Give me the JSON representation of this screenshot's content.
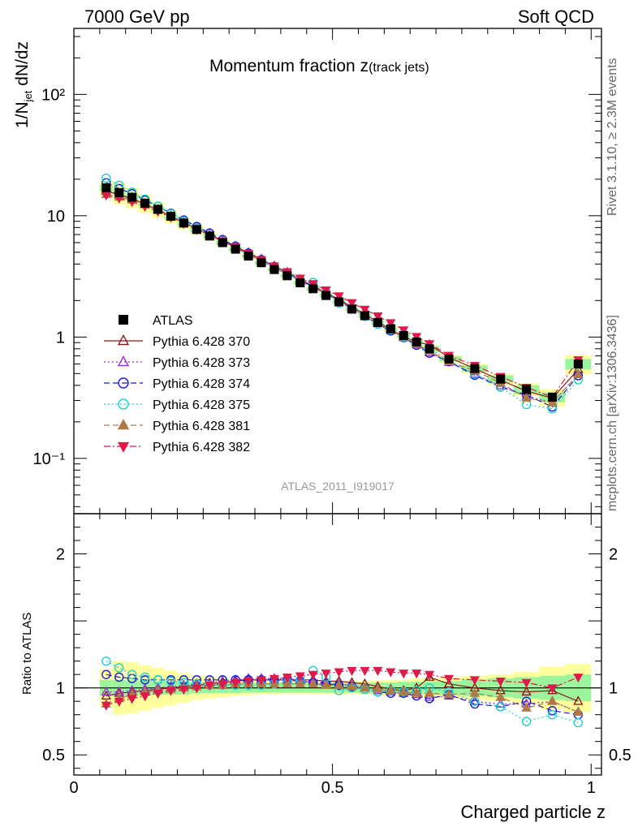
{
  "header": {
    "left": "7000 GeV pp",
    "right": "Soft QCD"
  },
  "side_labels": {
    "rivet": "Rivet 3.1.10, ≥ 2.3M events",
    "mcplots": "mcplots.cern.ch [arXiv:1306.3436]"
  },
  "chart_data": {
    "type": "scatter",
    "title_main": "Momentum fraction ",
    "title_var": "z",
    "title_sub": "(track jets)",
    "analysis_id": "ATLAS_2011_I919017",
    "ylabel_main": "1/N",
    "ylabel_sub": "jet",
    "ylabel_tail": " dN/dz",
    "ylabel_ratio": "Ratio to ATLAS",
    "xlabel": "Charged particle z",
    "xlim": [
      0,
      1.02
    ],
    "ylim_main": [
      0.035,
      350
    ],
    "ylog": true,
    "ylim_ratio": [
      0.35,
      2.3
    ],
    "x_ticks": [
      "0",
      "0.5",
      "1"
    ],
    "y_ticks_main": [
      "10⁻¹",
      "1",
      "10",
      "10²"
    ],
    "y_ticks_ratio": [
      "0.5",
      "1",
      "2"
    ],
    "legend_position": "lower-left",
    "x": [
      0.0625,
      0.0875,
      0.1125,
      0.1375,
      0.1625,
      0.1875,
      0.2125,
      0.2375,
      0.2625,
      0.2875,
      0.3125,
      0.3375,
      0.3625,
      0.3875,
      0.4125,
      0.4375,
      0.4625,
      0.4875,
      0.5125,
      0.5375,
      0.5625,
      0.5875,
      0.6125,
      0.6375,
      0.6625,
      0.6875,
      0.725,
      0.775,
      0.825,
      0.875,
      0.925,
      0.975
    ],
    "data": {
      "name": "ATLAS",
      "values": [
        17.0,
        15.5,
        14.2,
        12.7,
        11.3,
        9.9,
        8.7,
        7.7,
        6.8,
        6.0,
        5.3,
        4.65,
        4.1,
        3.6,
        3.2,
        2.8,
        2.5,
        2.2,
        1.95,
        1.7,
        1.5,
        1.32,
        1.17,
        1.03,
        0.91,
        0.8,
        0.66,
        0.55,
        0.45,
        0.37,
        0.32,
        0.6
      ],
      "band_inner": [
        0.06,
        0.06,
        0.06,
        0.05,
        0.05,
        0.05,
        0.05,
        0.04,
        0.04,
        0.04,
        0.04,
        0.035,
        0.035,
        0.035,
        0.035,
        0.035,
        0.035,
        0.035,
        0.035,
        0.035,
        0.04,
        0.04,
        0.04,
        0.045,
        0.045,
        0.05,
        0.05,
        0.06,
        0.07,
        0.08,
        0.09,
        0.1
      ],
      "band_outer": [
        0.14,
        0.2,
        0.19,
        0.17,
        0.15,
        0.13,
        0.11,
        0.09,
        0.08,
        0.07,
        0.06,
        0.055,
        0.05,
        0.05,
        0.045,
        0.045,
        0.045,
        0.045,
        0.045,
        0.05,
        0.05,
        0.055,
        0.06,
        0.06,
        0.07,
        0.07,
        0.08,
        0.09,
        0.1,
        0.12,
        0.16,
        0.18
      ]
    },
    "series": [
      {
        "name": "Pythia 6.428 370",
        "color": "#8b1a1a",
        "marker": "triangle-up-open",
        "dash": "",
        "ratio": [
          0.94,
          0.96,
          0.97,
          0.98,
          0.99,
          1.0,
          1.01,
          1.02,
          1.03,
          1.04,
          1.05,
          1.06,
          1.06,
          1.06,
          1.06,
          1.06,
          1.06,
          1.05,
          1.05,
          1.04,
          1.03,
          1.01,
          0.99,
          0.98,
          1.0,
          1.08,
          1.03,
          1.0,
          0.98,
          0.97,
          0.98,
          0.9
        ]
      },
      {
        "name": "Pythia 6.428 373",
        "color": "#9b30d0",
        "marker": "triangle-up-open",
        "dash": "2,3",
        "ratio": [
          0.97,
          0.97,
          0.98,
          0.99,
          1.0,
          1.01,
          1.02,
          1.03,
          1.04,
          1.05,
          1.06,
          1.07,
          1.07,
          1.07,
          1.07,
          1.06,
          1.05,
          1.04,
          1.03,
          1.02,
          1.0,
          0.98,
          0.97,
          0.96,
          0.95,
          0.93,
          0.94,
          0.9,
          0.88,
          0.88,
          0.9,
          0.82
        ]
      },
      {
        "name": "Pythia 6.428 374",
        "color": "#1a1ad8",
        "marker": "circle-open",
        "dash": "7,4",
        "ratio": [
          1.1,
          1.08,
          1.07,
          1.06,
          1.06,
          1.06,
          1.06,
          1.06,
          1.06,
          1.06,
          1.06,
          1.06,
          1.06,
          1.06,
          1.06,
          1.05,
          1.04,
          1.03,
          1.02,
          1.01,
          0.99,
          0.97,
          0.96,
          0.96,
          0.94,
          0.92,
          0.95,
          0.88,
          0.86,
          0.9,
          0.83,
          0.8
        ]
      },
      {
        "name": "Pythia 6.428 375",
        "color": "#20d0d0",
        "marker": "circle-open",
        "dash": "2,3",
        "ratio": [
          1.2,
          1.15,
          1.1,
          1.08,
          1.06,
          1.05,
          1.04,
          1.03,
          1.02,
          1.02,
          1.02,
          1.02,
          1.02,
          1.03,
          1.04,
          1.06,
          1.13,
          1.08,
          0.98,
          1.0,
          0.99,
          0.97,
          0.98,
          0.97,
          0.98,
          1.0,
          0.97,
          0.9,
          0.86,
          0.75,
          0.8,
          0.74
        ]
      },
      {
        "name": "Pythia 6.428 381",
        "color": "#b07a48",
        "marker": "triangle-up-filled",
        "dash": "7,4",
        "ratio": [
          0.88,
          0.92,
          0.95,
          0.97,
          0.98,
          0.99,
          1.0,
          1.01,
          1.02,
          1.02,
          1.03,
          1.03,
          1.03,
          1.03,
          1.03,
          1.03,
          1.03,
          1.02,
          1.02,
          1.01,
          1.0,
          0.99,
          0.98,
          0.97,
          0.96,
          0.96,
          0.95,
          0.96,
          0.93,
          0.85,
          0.9,
          0.82
        ]
      },
      {
        "name": "Pythia 6.428 382",
        "color": "#dd1a4a",
        "marker": "triangle-down-filled",
        "dash": "8,3,2,3",
        "ratio": [
          0.87,
          0.9,
          0.92,
          0.94,
          0.96,
          0.98,
          0.99,
          1.0,
          1.02,
          1.03,
          1.04,
          1.05,
          1.06,
          1.07,
          1.08,
          1.09,
          1.1,
          1.11,
          1.12,
          1.13,
          1.13,
          1.13,
          1.12,
          1.11,
          1.11,
          1.1,
          1.07,
          1.06,
          1.05,
          1.04,
          1.0,
          1.08
        ]
      }
    ]
  }
}
